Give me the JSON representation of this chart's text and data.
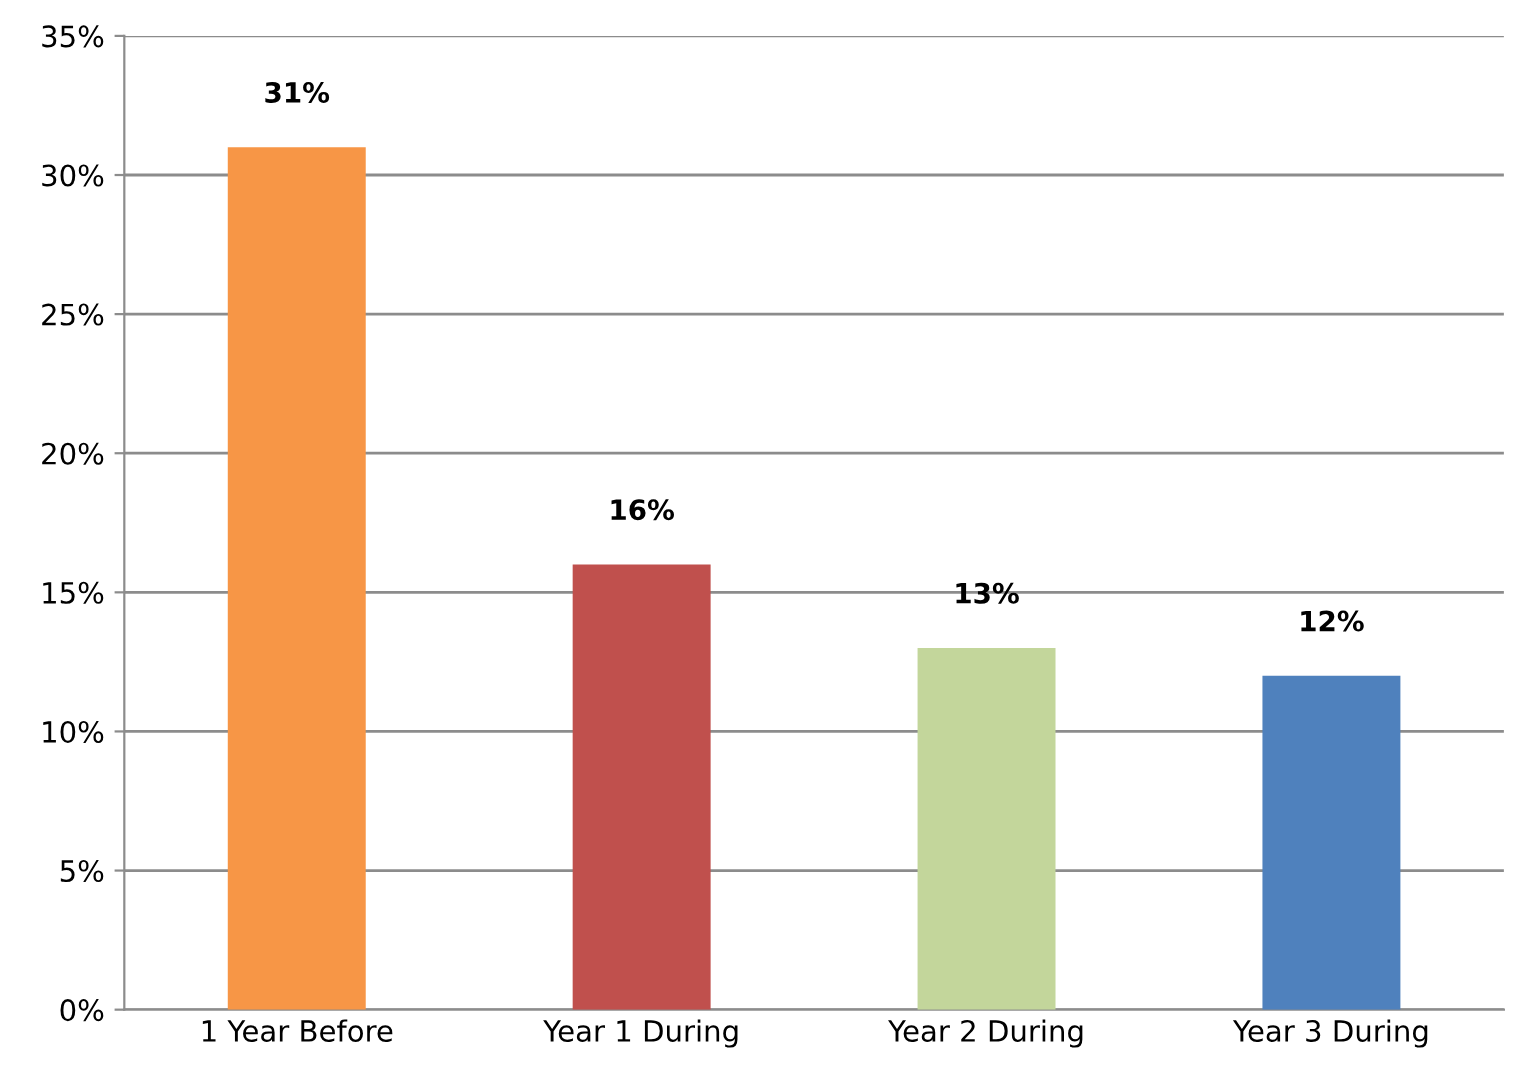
{
  "chart_data": {
    "type": "bar",
    "categories": [
      "1 Year Before",
      "Year 1 During",
      "Year 2 During",
      "Year 3 During"
    ],
    "values": [
      31,
      16,
      13,
      12
    ],
    "colors": [
      "#f79646",
      "#c0504d",
      "#c3d69b",
      "#4f81bd"
    ],
    "value_labels": [
      "31%",
      "16%",
      "13%",
      "12%"
    ],
    "ylim": [
      0,
      35
    ],
    "yticks": [
      {
        "value": 0,
        "label": "0%"
      },
      {
        "value": 5,
        "label": "5%"
      },
      {
        "value": 10,
        "label": "10%"
      },
      {
        "value": 15,
        "label": "15%"
      },
      {
        "value": 20,
        "label": "20%"
      },
      {
        "value": 25,
        "label": "25%"
      },
      {
        "value": 30,
        "label": "30%"
      },
      {
        "value": 35,
        "label": "35%"
      }
    ],
    "grid": "y",
    "legend": false
  }
}
